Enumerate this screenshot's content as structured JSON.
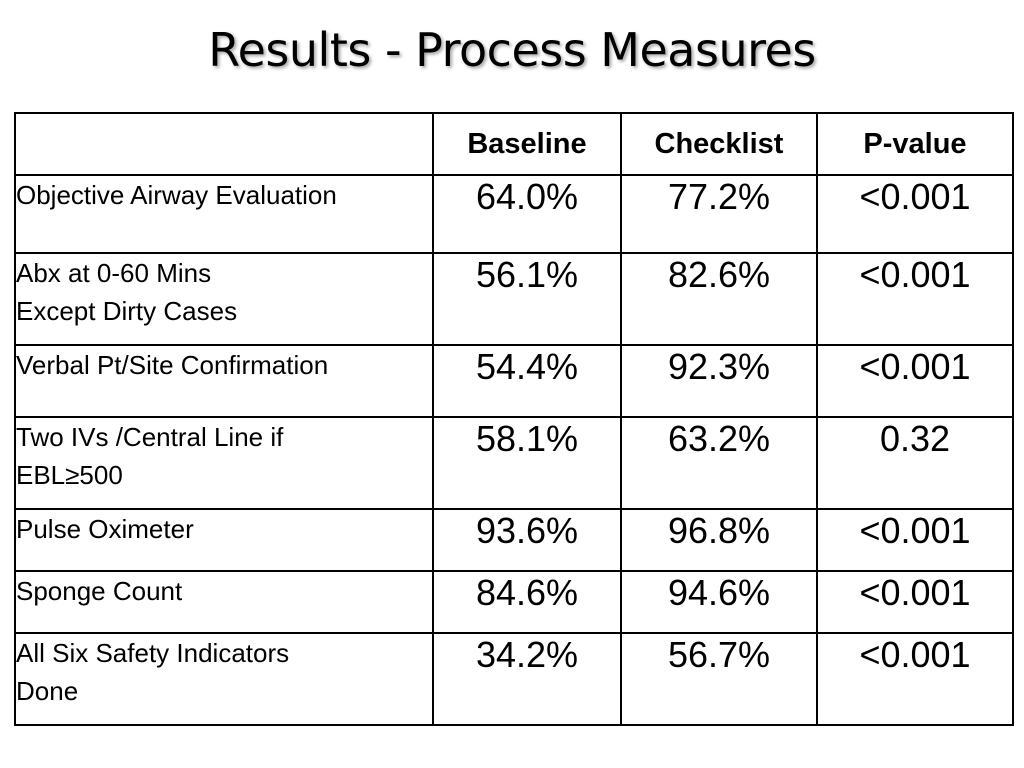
{
  "title": "Results - Process Measures",
  "table": {
    "headers": [
      "",
      "Baseline",
      "Checklist",
      "P-value"
    ],
    "rows": [
      {
        "label": [
          "Objective Airway Evaluation"
        ],
        "baseline": "64.0%",
        "checklist": "77.2%",
        "pvalue": "<0.001"
      },
      {
        "label": [
          "Abx at 0-60 Mins",
          "Except Dirty Cases"
        ],
        "baseline": "56.1%",
        "checklist": "82.6%",
        "pvalue": "<0.001"
      },
      {
        "label": [
          "Verbal Pt/Site Confirmation"
        ],
        "baseline": "54.4%",
        "checklist": "92.3%",
        "pvalue": "<0.001"
      },
      {
        "label": [
          "Two IVs /Central Line if",
          "EBL≥500"
        ],
        "baseline": "58.1%",
        "checklist": "63.2%",
        "pvalue": "0.32"
      },
      {
        "label": [
          "Pulse Oximeter"
        ],
        "baseline": "93.6%",
        "checklist": "96.8%",
        "pvalue": "<0.001"
      },
      {
        "label": [
          "Sponge Count"
        ],
        "baseline": "84.6%",
        "checklist": "94.6%",
        "pvalue": "<0.001"
      },
      {
        "label": [
          "All Six Safety Indicators",
          "Done"
        ],
        "baseline": "34.2%",
        "checklist": "56.7%",
        "pvalue": "<0.001"
      }
    ]
  }
}
